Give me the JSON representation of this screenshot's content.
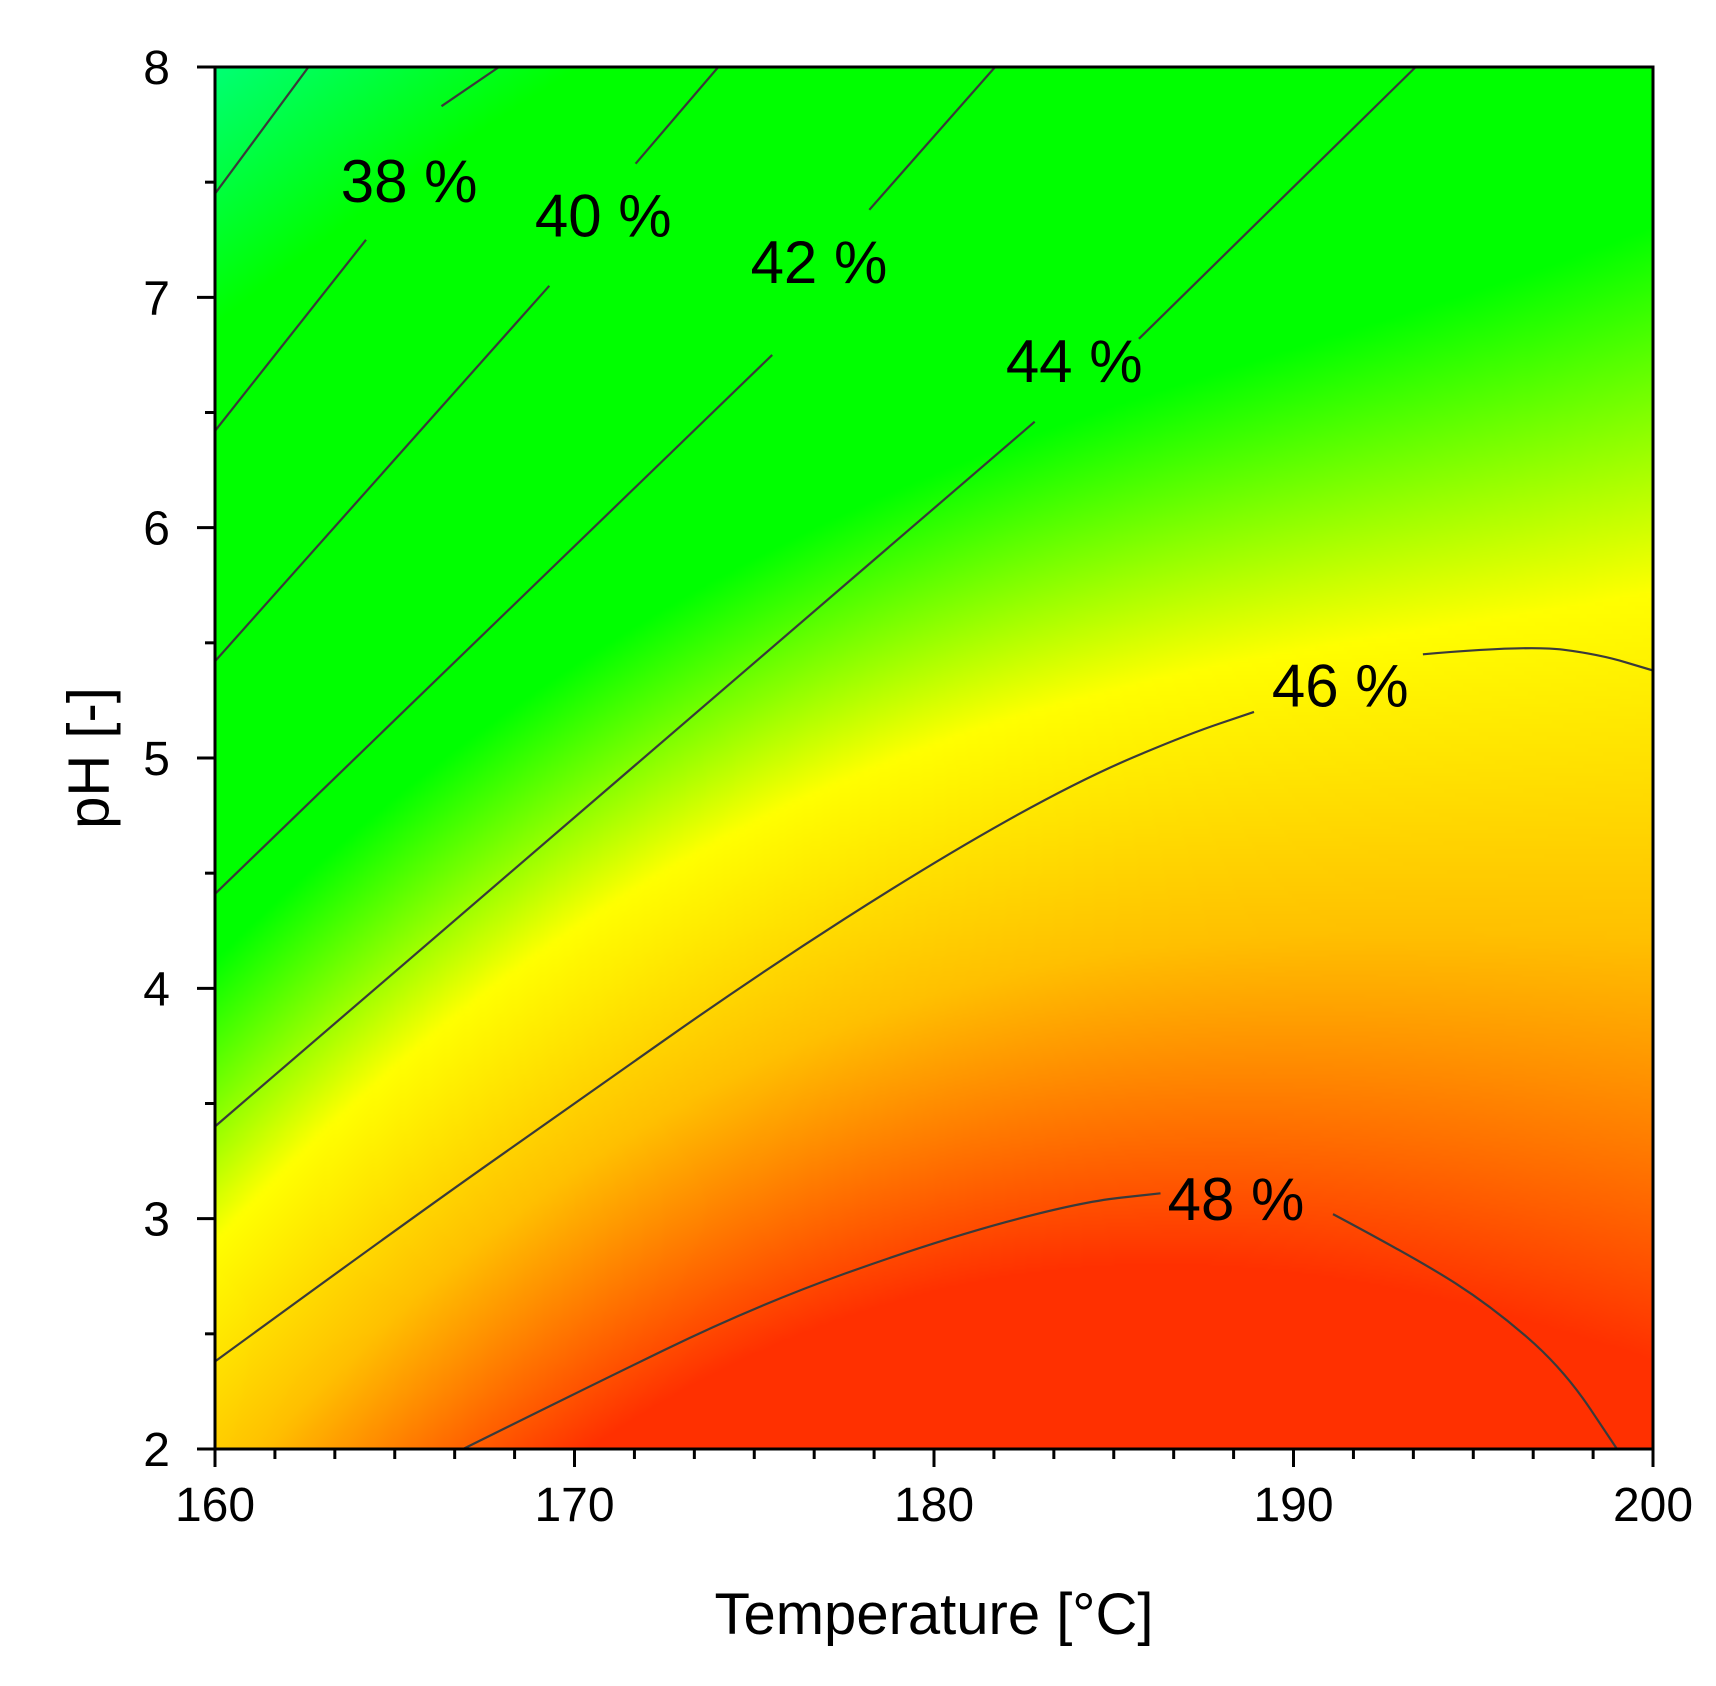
{
  "chart_data": {
    "type": "heatmap",
    "subtype": "contour",
    "title": "",
    "xlabel": "Temperature [°C]",
    "ylabel": "pH [-]",
    "xlim": [
      160,
      200
    ],
    "ylim": [
      2,
      8
    ],
    "x_ticks": [
      {
        "value": 160,
        "label": "160"
      },
      {
        "value": 170,
        "label": "170"
      },
      {
        "value": 180,
        "label": "180"
      },
      {
        "value": 190,
        "label": "190"
      },
      {
        "value": 200,
        "label": "200"
      }
    ],
    "x_minor_step": 1.6667,
    "y_ticks": [
      {
        "value": 2,
        "label": "2"
      },
      {
        "value": 3,
        "label": "3"
      },
      {
        "value": 4,
        "label": "4"
      },
      {
        "value": 5,
        "label": "5"
      },
      {
        "value": 6,
        "label": "6"
      },
      {
        "value": 7,
        "label": "7"
      },
      {
        "value": 8,
        "label": "8"
      }
    ],
    "y_minor_step": 0.5,
    "colormap": {
      "stops": [
        {
          "value": 36.5,
          "color": "#0038ff"
        },
        {
          "value": 38.5,
          "color": "#00ffff"
        },
        {
          "value": 41.0,
          "color": "#00ff00"
        },
        {
          "value": 44.0,
          "color": "#00ff00"
        },
        {
          "value": 45.5,
          "color": "#ffff00"
        },
        {
          "value": 47.0,
          "color": "#ffc000"
        },
        {
          "value": 49.0,
          "color": "#ff3000"
        }
      ]
    },
    "contours": [
      {
        "level": 38,
        "label": "38 %",
        "points": [
          [
            160.0,
            7.45
          ],
          [
            162.6,
            8.0
          ]
        ],
        "label_at": [
          165.4,
          7.5
        ]
      },
      {
        "level": 38,
        "label": "",
        "points": [
          [
            160.0,
            6.42
          ],
          [
            164.2,
            7.25
          ]
        ],
        "label_at": null
      },
      {
        "level": 38,
        "label": "",
        "points": [
          [
            166.3,
            7.83
          ],
          [
            167.9,
            8.0
          ]
        ],
        "label_at": null
      },
      {
        "level": 40,
        "label": "",
        "points": [
          [
            160.0,
            5.42
          ],
          [
            169.3,
            7.05
          ]
        ],
        "label_at": null
      },
      {
        "level": 40,
        "label": "40 %",
        "points": [
          [
            171.7,
            7.58
          ],
          [
            174.0,
            8.0
          ]
        ],
        "label_at": [
          170.8,
          7.35
        ]
      },
      {
        "level": 42,
        "label": "",
        "points": [
          [
            160.0,
            4.41
          ],
          [
            175.5,
            6.75
          ]
        ],
        "label_at": null
      },
      {
        "level": 42,
        "label": "42 %",
        "points": [
          [
            178.2,
            7.38
          ],
          [
            181.7,
            8.0
          ]
        ],
        "label_at": [
          176.8,
          7.15
        ]
      },
      {
        "level": 44,
        "label": "",
        "points": [
          [
            160.0,
            3.4
          ],
          [
            182.8,
            6.46
          ]
        ],
        "label_at": null
      },
      {
        "level": 44,
        "label": "44 %",
        "points": [
          [
            185.7,
            6.82
          ],
          [
            193.4,
            8.0
          ]
        ],
        "label_at": [
          183.9,
          6.72
        ]
      },
      {
        "level": 46,
        "label": "",
        "points": [
          [
            160.0,
            2.38
          ],
          [
            165.0,
            2.95
          ],
          [
            170.0,
            3.5
          ],
          [
            175.0,
            4.05
          ],
          [
            180.0,
            4.55
          ],
          [
            184.0,
            4.9
          ],
          [
            187.0,
            5.1
          ],
          [
            188.9,
            5.2
          ]
        ],
        "label_at": null
      },
      {
        "level": 46,
        "label": "46 %",
        "points": [
          [
            193.6,
            5.45
          ],
          [
            196.5,
            5.49
          ],
          [
            198.5,
            5.45
          ],
          [
            200.0,
            5.38
          ]
        ],
        "label_at": [
          191.3,
          5.31
        ]
      },
      {
        "level": 48,
        "label": "",
        "points": [
          [
            166.9,
            2.0
          ],
          [
            170.0,
            2.24
          ],
          [
            175.0,
            2.62
          ],
          [
            180.0,
            2.9
          ],
          [
            184.0,
            3.07
          ],
          [
            186.3,
            3.11
          ]
        ],
        "label_at": null
      },
      {
        "level": 48,
        "label": "48 %",
        "points": [
          [
            191.1,
            3.02
          ],
          [
            193.5,
            2.82
          ],
          [
            195.5,
            2.62
          ],
          [
            197.5,
            2.35
          ],
          [
            199.0,
            2.0
          ]
        ],
        "label_at": [
          188.4,
          3.08
        ]
      }
    ],
    "legend": "none"
  }
}
